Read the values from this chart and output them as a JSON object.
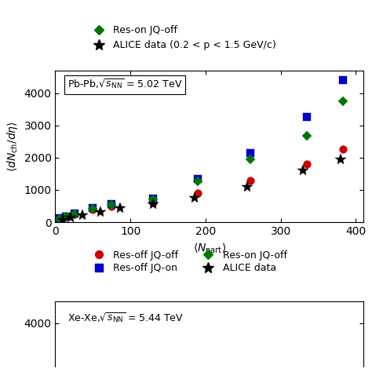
{
  "title_pbpb": "Pb-Pb,$\\sqrt{s}_{\\mathrm{NN}}$ = 5.02 TeV",
  "title_xexe": "Xe-Xe,$\\sqrt{s}_{\\mathrm{NN}}$ = 5.44 TeV",
  "xlabel": "< N$_{\\mathrm{part}}$ >",
  "ylabel": "< dN$_{\\mathrm{ch}}$/d$\\eta$ >",
  "pbpb": {
    "res_off_jq_off": {
      "x": [
        6,
        14,
        26,
        50,
        75,
        130,
        190,
        260,
        335,
        383
      ],
      "y": [
        100,
        160,
        240,
        380,
        490,
        620,
        900,
        1300,
        1800,
        2250
      ],
      "color": "#cc0000",
      "marker": "o",
      "label": "Res-off JQ-off"
    },
    "res_off_jq_on": {
      "x": [
        6,
        14,
        26,
        50,
        75,
        130,
        190,
        260,
        335,
        383
      ],
      "y": [
        110,
        175,
        265,
        430,
        560,
        720,
        1350,
        2150,
        3250,
        4400
      ],
      "color": "#0000cc",
      "marker": "s",
      "label": "Res-off JQ-on"
    },
    "res_on_jq_off": {
      "x": [
        6,
        14,
        26,
        50,
        75,
        130,
        190,
        260,
        335,
        383
      ],
      "y": [
        105,
        170,
        255,
        420,
        540,
        700,
        1270,
        1950,
        2680,
        3750
      ],
      "color": "#007700",
      "marker": "D",
      "label": "Res-on JQ-off"
    },
    "alice": {
      "x": [
        10,
        20,
        36,
        60,
        86,
        130,
        185,
        255,
        330,
        380
      ],
      "y": [
        75,
        140,
        210,
        310,
        430,
        560,
        750,
        1100,
        1600,
        1950
      ],
      "color": "#000000",
      "marker": "*",
      "label": "ALICE data"
    }
  },
  "legend_top": [
    {
      "label": "Res-on JQ-off",
      "color": "#007700",
      "marker": "D"
    },
    {
      "label": "ALICE data (0.2 < p < 1.5 GeV/c)",
      "color": "#000000",
      "marker": "*"
    }
  ],
  "legend_bottom": [
    {
      "label": "Res-off JQ-off",
      "color": "#cc0000",
      "marker": "o"
    },
    {
      "label": "Res-off JQ-on",
      "color": "#0000cc",
      "marker": "s"
    },
    {
      "label": "Res-on JQ-off",
      "color": "#007700",
      "marker": "D"
    },
    {
      "label": "ALICE data",
      "color": "#000000",
      "marker": "*"
    }
  ],
  "ylim_pbpb": [
    0,
    4700
  ],
  "xlim_pbpb": [
    0,
    410
  ],
  "yticks_pbpb": [
    0,
    1000,
    2000,
    3000,
    4000
  ],
  "xticks_pbpb": [
    0,
    100,
    200,
    300,
    400
  ],
  "xexe_visible": true,
  "ylim_xexe": [
    0,
    4200
  ],
  "xlim_xexe": [
    0,
    180
  ],
  "bg_color": "#ffffff"
}
